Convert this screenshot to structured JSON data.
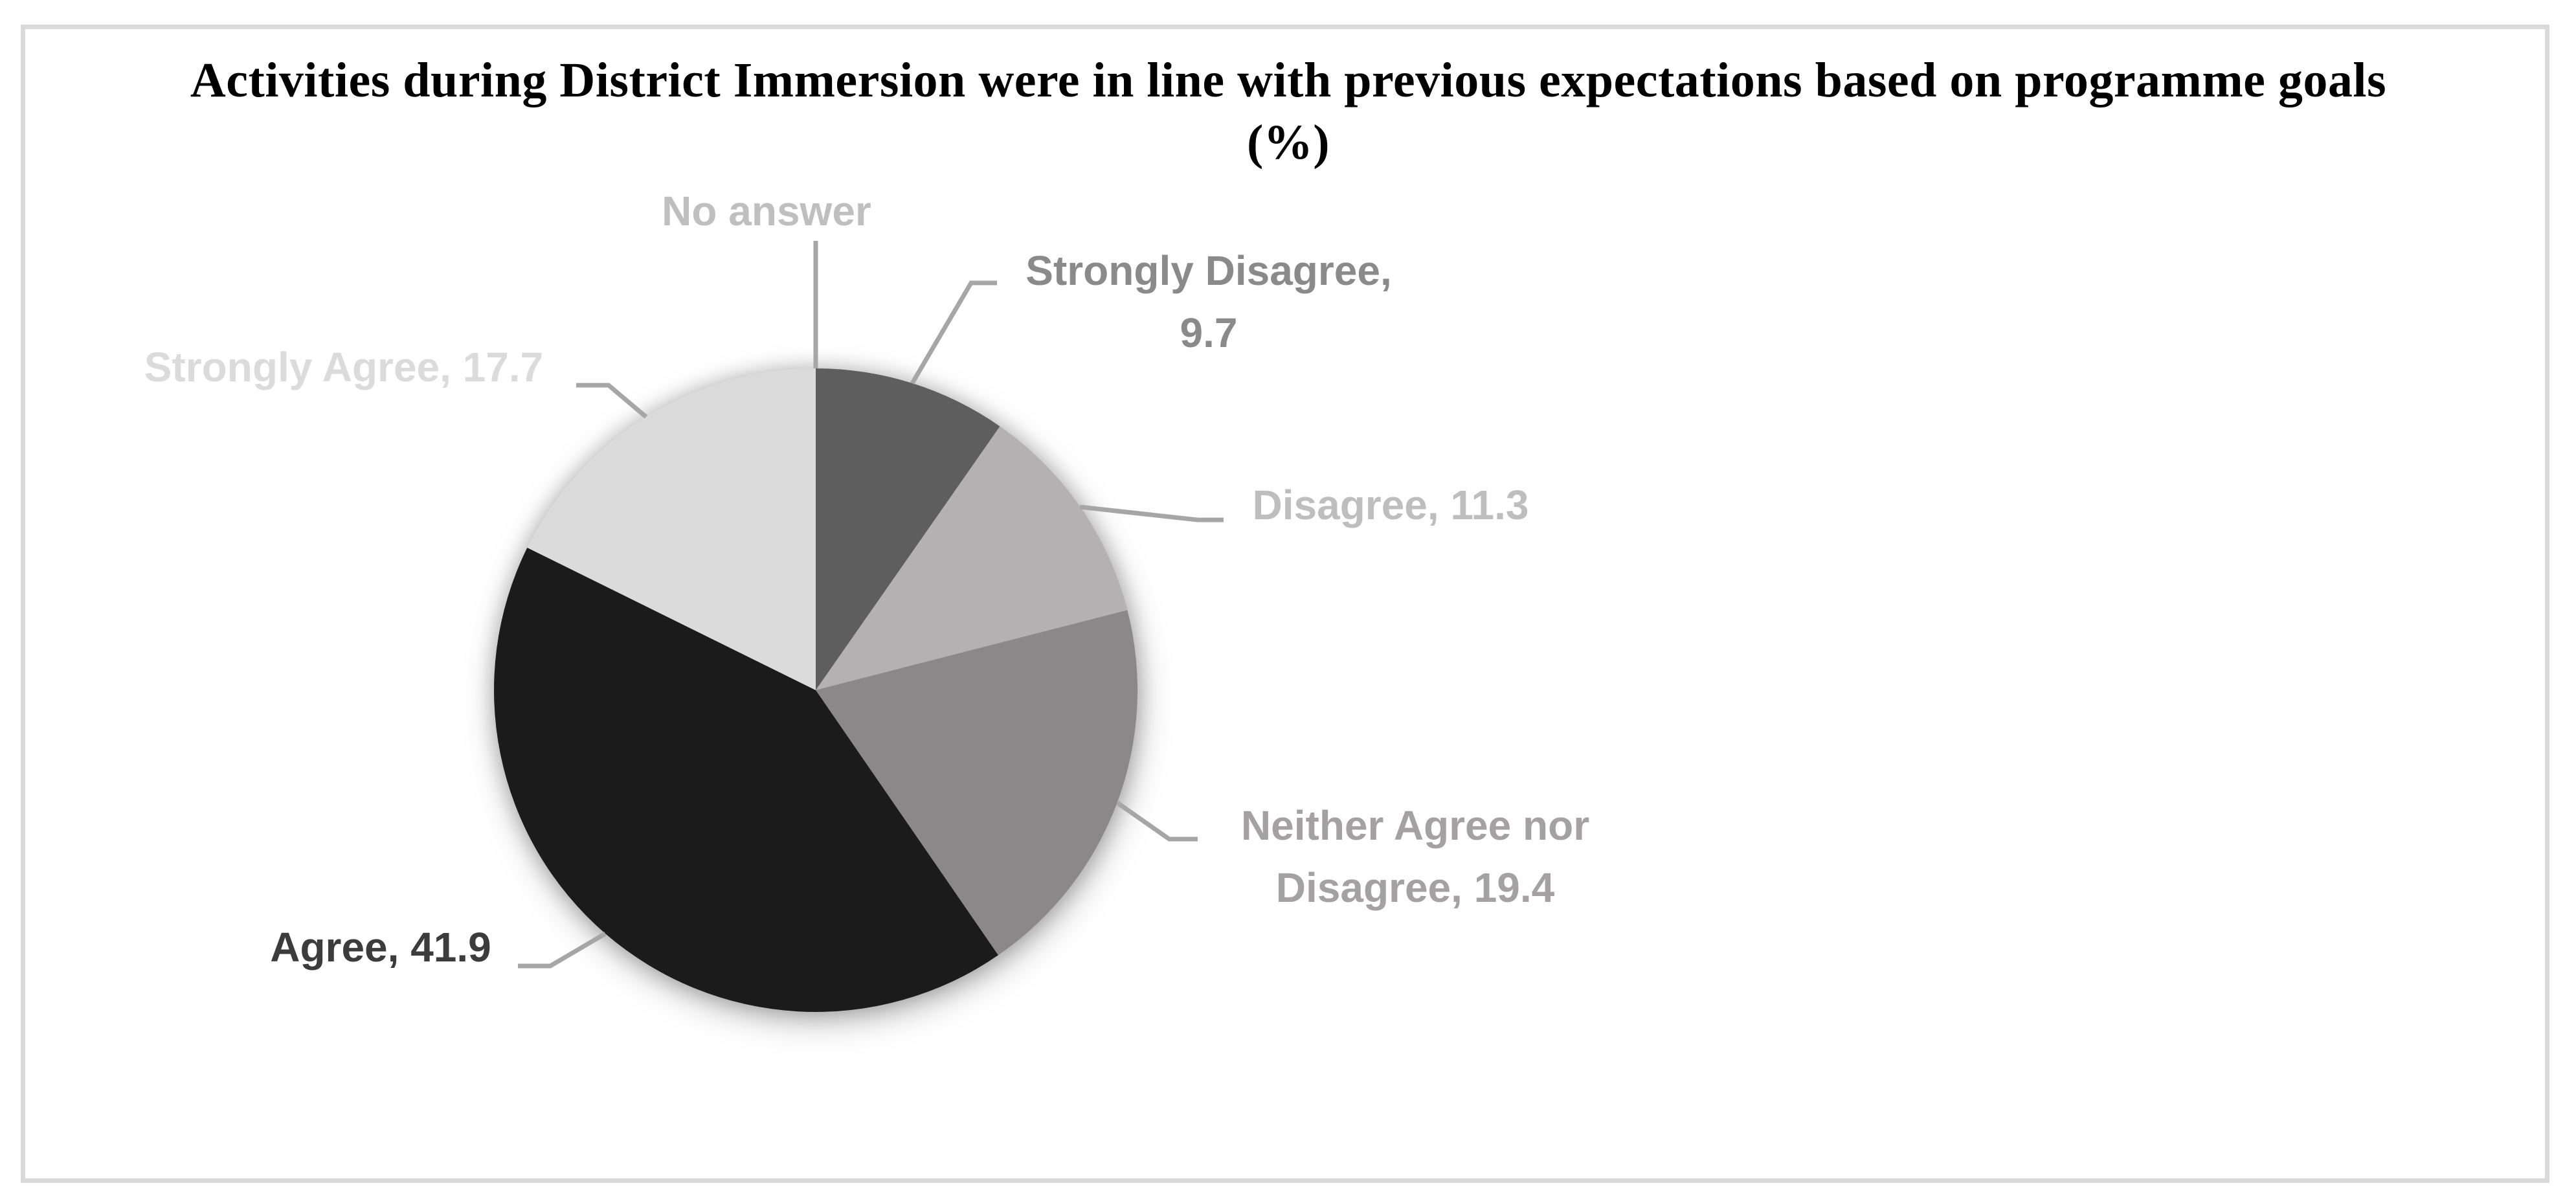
{
  "chart_data": {
    "type": "pie",
    "title": "Activities during District Immersion were in line with previous expectations based on programme goals (%)",
    "title_lines": [
      "Activities during District Immersion were in line with previous expectations based on programme goals",
      "(%)"
    ],
    "unit": "%",
    "direction": "clockwise",
    "start_angle_deg": 0,
    "legend": "none",
    "leader_line_color": "#A6A6A6",
    "frame_border_color": "#D9D9D9",
    "slices": [
      {
        "label": "Strongly Disagree",
        "value": 9.7,
        "color": "#5F5E5E"
      },
      {
        "label": "Disagree",
        "value": 11.3,
        "color": "#B3B1B1"
      },
      {
        "label": "Neither Agree nor Disagree",
        "value": 19.4,
        "color": "#8A8888"
      },
      {
        "label": "Agree",
        "value": 41.9,
        "color": "#1B1B1B"
      },
      {
        "label": "Strongly Agree",
        "value": 17.7,
        "color": "#DBDBDB"
      },
      {
        "label": "No answer",
        "value": 0,
        "color": "#FFFFFF"
      }
    ],
    "callouts": [
      {
        "id": "no-answer",
        "lines": [
          "No answer"
        ],
        "color": "#BFBFBF"
      },
      {
        "id": "strongly-disagree",
        "lines": [
          "Strongly Disagree,",
          "9.7"
        ],
        "color": "#8A8A8A"
      },
      {
        "id": "disagree",
        "lines": [
          "Disagree, 11.3"
        ],
        "color": "#BFBEBE"
      },
      {
        "id": "neither",
        "lines": [
          "Neither Agree nor",
          "Disagree, 19.4"
        ],
        "color": "#A3A1A1"
      },
      {
        "id": "agree",
        "lines": [
          "Agree, 41.9"
        ],
        "color": "#3D3C3C"
      },
      {
        "id": "strongly-agree",
        "lines": [
          "Strongly Agree, 17.7"
        ],
        "color": "#DCDBDB"
      }
    ]
  }
}
